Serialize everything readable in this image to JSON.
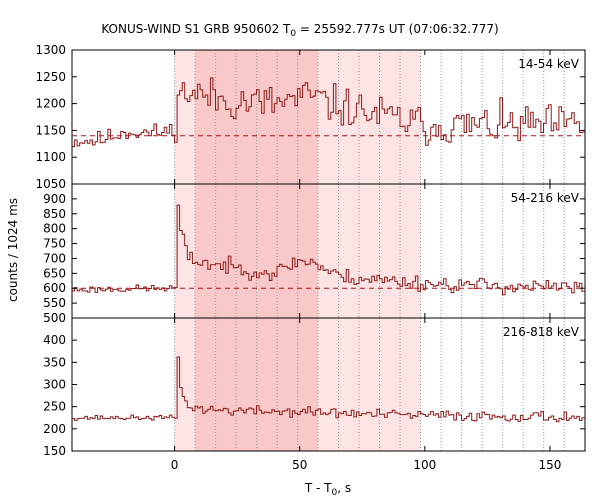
{
  "chart_data": {
    "type": "line",
    "title": {
      "prefix": "KONUS-WIND S1 GRB 950602 T",
      "subscript": "0",
      "suffix": " = 25592.777s UT (07:06:32.777)"
    },
    "xlabel": {
      "prefix": "T - T",
      "subscript": "0",
      "suffix": ", s"
    },
    "ylabel": "counts / 1024 ms",
    "xlim": [
      -41,
      164
    ],
    "xticks": [
      "0",
      "50",
      "100",
      "150"
    ],
    "xtick_values": [
      0,
      50,
      100,
      150
    ],
    "colors": {
      "data_line": "#8b1a1a",
      "background_line": "#b01010",
      "shade_light": "#fde4e4",
      "shade_dark": "#f9c8c8",
      "dotted": "#999999"
    },
    "shaded_intervals": [
      {
        "from": 0,
        "to": 98.3,
        "level": "light"
      },
      {
        "from": 8.2,
        "to": 57.3,
        "level": "dark"
      }
    ],
    "dotted_lines_x": [
      0,
      8.2,
      16.4,
      24.6,
      32.8,
      41.0,
      49.2,
      57.3,
      65.5,
      73.7,
      81.9,
      90.1,
      98.3,
      106.5,
      114.7,
      122.9,
      131.1,
      139.3,
      147.5,
      155.7
    ],
    "panels": [
      {
        "id": "panel-14-54",
        "label": "14-54 keV",
        "ylim": [
          1050,
          1300
        ],
        "yticks": [
          1050,
          1100,
          1150,
          1200,
          1250,
          1300
        ],
        "background_level": 1140,
        "series": {
          "name": "14-54 keV",
          "x_start": -41,
          "step": 1.024,
          "values": []
        },
        "profile": {
          "pre": [
            [
              -41,
              1130
            ],
            [
              -30,
              1132
            ],
            [
              -20,
              1148
            ],
            [
              -10,
              1145
            ],
            [
              -1,
              1150
            ]
          ],
          "burst": [
            [
              0,
              1210
            ],
            [
              5,
              1222
            ],
            [
              20,
              1205
            ],
            [
              40,
              1200
            ],
            [
              55,
              1215
            ],
            [
              60,
              1200
            ],
            [
              75,
              1185
            ],
            [
              100,
              1158
            ],
            [
              164,
              1160
            ]
          ],
          "noise": 28,
          "seed": 11
        }
      },
      {
        "id": "panel-54-216",
        "label": "54-216 keV",
        "ylim": [
          500,
          950
        ],
        "yticks": [
          500,
          550,
          600,
          650,
          700,
          750,
          800,
          850,
          900
        ],
        "background_level": 600,
        "series": {
          "name": "54-216 keV",
          "x_start": -41,
          "step": 1.024,
          "values": []
        },
        "profile": {
          "pre": [
            [
              -41,
              595
            ],
            [
              -1,
              600
            ]
          ],
          "burst": [
            [
              0,
              895
            ],
            [
              1,
              880
            ],
            [
              2,
              790
            ],
            [
              5,
              700
            ],
            [
              15,
              680
            ],
            [
              30,
              660
            ],
            [
              40,
              650
            ],
            [
              48,
              690
            ],
            [
              55,
              690
            ],
            [
              58,
              670
            ],
            [
              65,
              640
            ],
            [
              90,
              622
            ],
            [
              110,
              612
            ],
            [
              164,
              600
            ]
          ],
          "noise": 20,
          "seed": 23
        }
      },
      {
        "id": "panel-216-818",
        "label": "216-818 keV",
        "ylim": [
          150,
          450
        ],
        "yticks": [
          150,
          200,
          250,
          300,
          350,
          400
        ],
        "background_level": null,
        "series": {
          "name": "216-818 keV",
          "x_start": -41,
          "step": 1.024,
          "values": []
        },
        "profile": {
          "pre": [
            [
              -41,
              225
            ],
            [
              -1,
              225
            ]
          ],
          "burst": [
            [
              0,
              380
            ],
            [
              1,
              360
            ],
            [
              2,
              300
            ],
            [
              4,
              255
            ],
            [
              10,
              244
            ],
            [
              30,
              240
            ],
            [
              55,
              238
            ],
            [
              80,
              232
            ],
            [
              164,
              226
            ]
          ],
          "noise": 9,
          "seed": 37
        }
      }
    ]
  }
}
